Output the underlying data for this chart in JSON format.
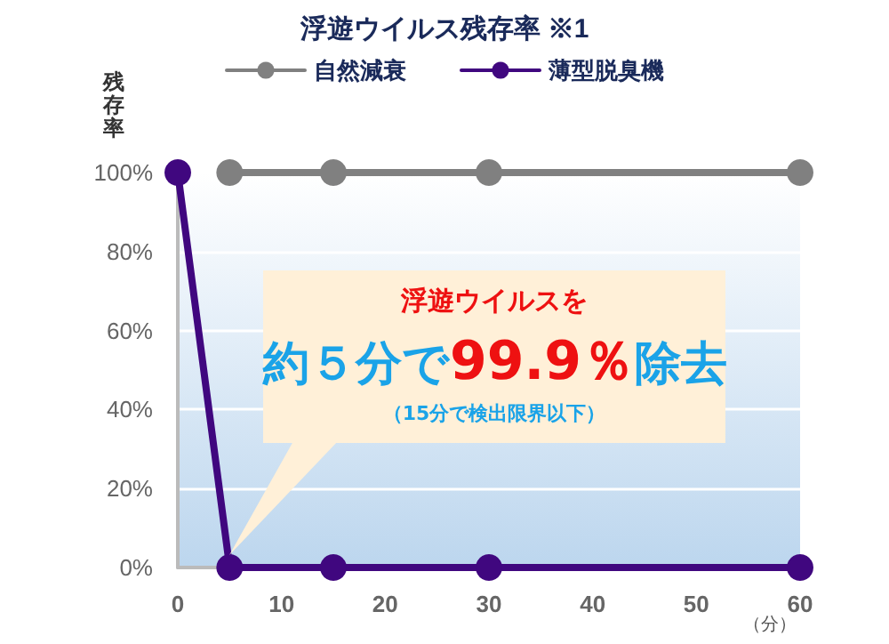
{
  "chart_data": {
    "type": "line",
    "title": "浮遊ウイルス残存率 ※1",
    "ylabel": "残存率",
    "xlabel": "（分）",
    "annotations": [
      "浮遊ウイルスを",
      "約５分で99.9％除去",
      "（15分で検出限界以下）"
    ],
    "x": [
      0,
      5,
      15,
      30,
      60
    ],
    "series": [
      {
        "name": "自然減衰",
        "color": "#808080",
        "values": [
          null,
          100,
          100,
          100,
          100
        ]
      },
      {
        "name": "薄型脱臭機",
        "color": "#40077f",
        "values": [
          100,
          0,
          0,
          0,
          0
        ]
      }
    ],
    "xlim": [
      0,
      60
    ],
    "xticks": [
      0,
      10,
      20,
      30,
      40,
      50,
      60
    ],
    "ylim": [
      0,
      100
    ],
    "yticks": [
      {
        "value": 0,
        "label": "0%"
      },
      {
        "value": 20,
        "label": "20%"
      },
      {
        "value": 40,
        "label": "40%"
      },
      {
        "value": 60,
        "label": "60%"
      },
      {
        "value": 80,
        "label": "80%"
      },
      {
        "value": 100,
        "label": "100%"
      }
    ],
    "grid": "y",
    "legend": "top",
    "marker": "circle",
    "line_style": "solid"
  }
}
